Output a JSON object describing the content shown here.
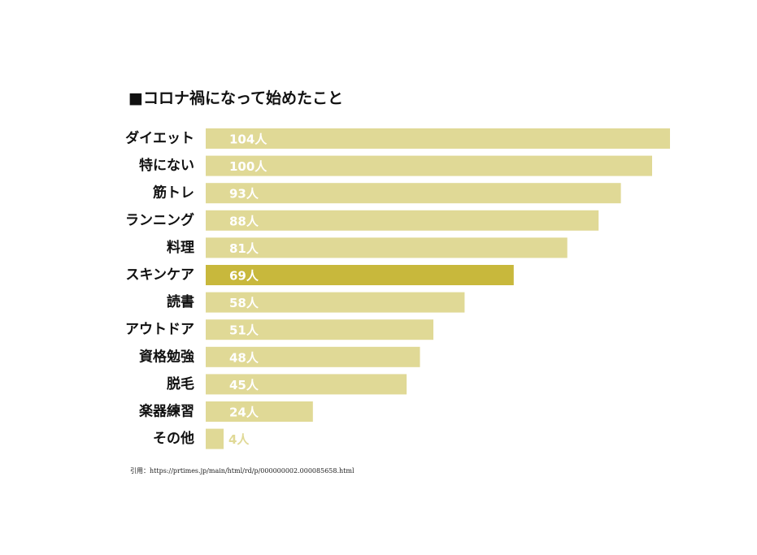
{
  "chart_data": {
    "type": "bar",
    "orientation": "horizontal",
    "title": "■コロナ禍になって始めたこと",
    "categories": [
      "ダイエット",
      "特にない",
      "筋トレ",
      "ランニング",
      "料理",
      "スキンケア",
      "読書",
      "アウトドア",
      "資格勉強",
      "脱毛",
      "楽器練習",
      "その他"
    ],
    "values": [
      104,
      100,
      93,
      88,
      81,
      69,
      58,
      51,
      48,
      45,
      24,
      4
    ],
    "value_labels": [
      "104人",
      "100人",
      "93人",
      "88人",
      "81人",
      "69人",
      "58人",
      "51人",
      "48人",
      "45人",
      "24人",
      "4人"
    ],
    "unit": "人",
    "xlim": [
      0,
      104
    ],
    "grid": false,
    "legend": "none",
    "colors": {
      "bar": "#e0d996",
      "highlight_bar": "#c8b83c",
      "highlight_category": "スキンケア",
      "value_text": "#ffffff",
      "small_value_text": "#e0d996"
    }
  },
  "source": "引用：https://prtimes.jp/main/html/rd/p/000000002.000085658.html"
}
